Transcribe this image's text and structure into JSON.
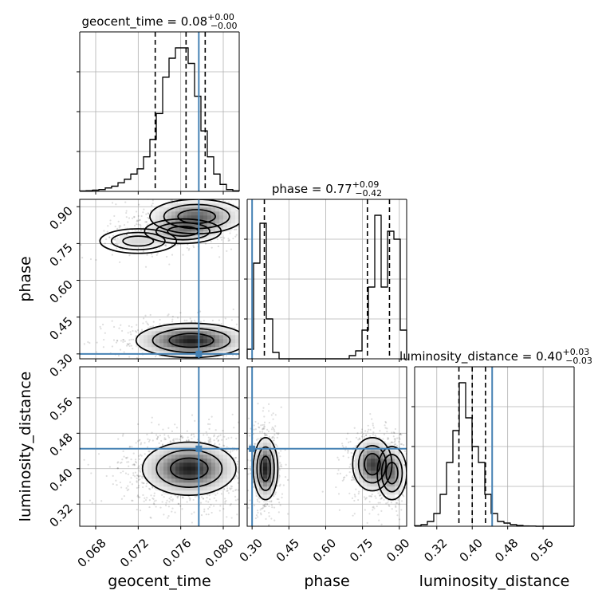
{
  "chart_data": {
    "type": "corner",
    "parameters": [
      "geocent_time",
      "phase",
      "luminosity_distance"
    ],
    "truths": [
      0.0777,
      0.3,
      0.445
    ],
    "titles": {
      "geocent_time": {
        "prefix": "geocent_time = 0.08",
        "sup": "+0.00",
        "sub": "−0.00"
      },
      "phase": {
        "prefix": "phase = 0.77",
        "sup": "+0.09",
        "sub": "−0.42"
      },
      "luminosity_distance": {
        "prefix": "luminosity_distance = 0.40",
        "sup": "+0.03",
        "sub": "−0.03"
      }
    },
    "axis_labels": {
      "x": [
        "geocent_time",
        "phase",
        "luminosity_distance"
      ],
      "y": [
        "phase",
        "luminosity_distance"
      ]
    },
    "ranges": {
      "geocent_time": [
        0.0665,
        0.0815
      ],
      "phase": [
        0.28,
        0.93
      ],
      "luminosity_distance": [
        0.27,
        0.63
      ]
    },
    "ticks": {
      "geocent_time": [
        "0.068",
        "0.072",
        "0.076",
        "0.080"
      ],
      "phase": [
        "0.30",
        "0.45",
        "0.60",
        "0.75",
        "0.90"
      ],
      "luminosity_distance": [
        "0.32",
        "0.40",
        "0.48",
        "0.56"
      ]
    },
    "quantiles": {
      "geocent_time": [
        0.0736,
        0.0765,
        0.0783
      ],
      "phase": [
        0.35,
        0.77,
        0.86
      ],
      "luminosity_distance": [
        0.37,
        0.4,
        0.43
      ]
    },
    "histograms": {
      "geocent_time": [
        0.002,
        0.004,
        0.007,
        0.01,
        0.02,
        0.03,
        0.05,
        0.07,
        0.1,
        0.13,
        0.2,
        0.3,
        0.45,
        0.66,
        0.77,
        0.83,
        0.83,
        0.74,
        0.55,
        0.35,
        0.2,
        0.1,
        0.04,
        0.01,
        0.003
      ],
      "phase": [
        0.06,
        0.6,
        0.85,
        0.25,
        0.04,
        0.0,
        0.0,
        0.0,
        0.0,
        0.0,
        0.0,
        0.0,
        0.0,
        0.0,
        0.0,
        0.0,
        0.02,
        0.05,
        0.18,
        0.45,
        0.9,
        0.45,
        0.8,
        0.75,
        0.18
      ],
      "luminosity_distance": [
        0.003,
        0.01,
        0.03,
        0.08,
        0.2,
        0.4,
        0.6,
        0.9,
        0.68,
        0.5,
        0.4,
        0.2,
        0.08,
        0.03,
        0.02,
        0.01,
        0.005,
        0.002,
        0.001,
        0.0,
        0.0,
        0.0,
        0.0,
        0.0,
        0.0
      ]
    },
    "modes": {
      "geocent_time_phase": [
        {
          "mx": 0.0775,
          "my": 0.86,
          "sx": 0.0022,
          "sy": 0.035,
          "w": 0.3
        },
        {
          "mx": 0.0762,
          "my": 0.8,
          "sx": 0.0018,
          "sy": 0.025,
          "w": 0.2
        },
        {
          "mx": 0.072,
          "my": 0.76,
          "sx": 0.0018,
          "sy": 0.025,
          "w": 0.1
        },
        {
          "mx": 0.077,
          "my": 0.355,
          "sx": 0.0026,
          "sy": 0.035,
          "w": 0.4
        }
      ],
      "geocent_time_luminosity_distance": [
        {
          "mx": 0.0768,
          "my": 0.4,
          "sx": 0.0022,
          "sy": 0.03,
          "w": 1.0
        }
      ],
      "phase_luminosity_distance": [
        {
          "mx": 0.355,
          "my": 0.4,
          "sx": 0.025,
          "sy": 0.035,
          "w": 0.4
        },
        {
          "mx": 0.79,
          "my": 0.41,
          "sx": 0.04,
          "sy": 0.03,
          "w": 0.35
        },
        {
          "mx": 0.87,
          "my": 0.39,
          "sx": 0.03,
          "sy": 0.03,
          "w": 0.25
        }
      ]
    },
    "colors": {
      "truth": "#4682b4",
      "grid": "#b0b0b0",
      "line": "#000000",
      "points": "#000000"
    },
    "grid": true
  }
}
